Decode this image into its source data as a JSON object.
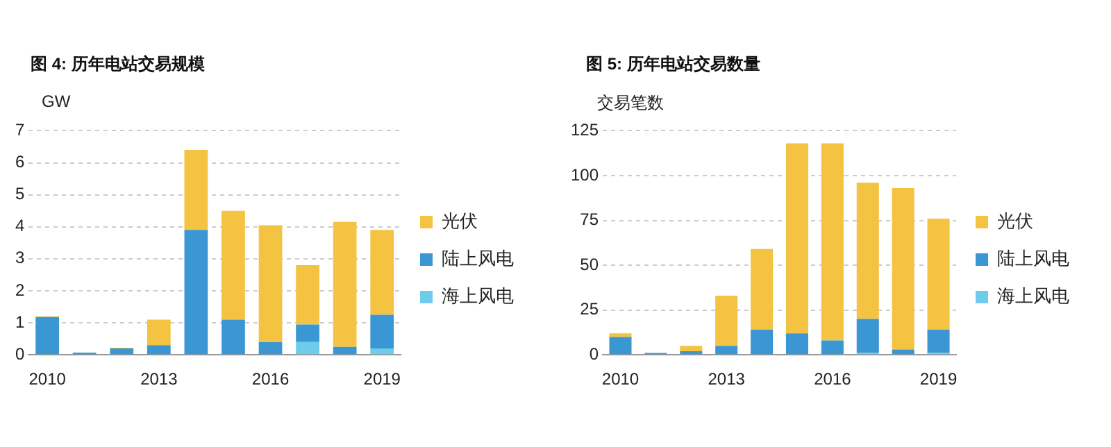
{
  "chart_data": [
    {
      "type": "bar",
      "title": "图 4: 历年电站交易规模",
      "ylabel": "GW",
      "stacked": true,
      "categories": [
        "2010",
        null,
        null,
        "2013",
        null,
        null,
        "2016",
        null,
        null,
        "2019"
      ],
      "ylim": [
        0,
        7
      ],
      "yticks": [
        0,
        1,
        2,
        3,
        4,
        5,
        6,
        7
      ],
      "grid": "y",
      "legend": "right",
      "series": [
        {
          "name": "海上风电",
          "color": "#6fcbea",
          "values": [
            0,
            0,
            0,
            0,
            0,
            0,
            0,
            0.4,
            0,
            0.2
          ]
        },
        {
          "name": "陆上风电",
          "color": "#3a97d4",
          "values": [
            1.18,
            0.07,
            0.2,
            0.3,
            3.9,
            1.1,
            0.4,
            0.55,
            0.25,
            1.05
          ]
        },
        {
          "name": "光伏",
          "color": "#f5c342",
          "values": [
            0.02,
            0,
            0.02,
            0.8,
            2.5,
            3.4,
            3.65,
            1.85,
            3.9,
            2.65
          ]
        }
      ]
    },
    {
      "type": "bar",
      "title": "图 5: 历年电站交易数量",
      "ylabel": "交易笔数",
      "stacked": true,
      "categories": [
        "2010",
        null,
        null,
        "2013",
        null,
        null,
        "2016",
        null,
        null,
        "2019"
      ],
      "ylim": [
        0,
        125
      ],
      "yticks": [
        0,
        25,
        50,
        75,
        100,
        125
      ],
      "grid": "y",
      "legend": "right",
      "series": [
        {
          "name": "海上风电",
          "color": "#6fcbea",
          "values": [
            0,
            0,
            0,
            0,
            0,
            0,
            0,
            1,
            0,
            1
          ]
        },
        {
          "name": "陆上风电",
          "color": "#3a97d4",
          "values": [
            10,
            1,
            2,
            5,
            14,
            12,
            8,
            19,
            3,
            13
          ]
        },
        {
          "name": "光伏",
          "color": "#f5c342",
          "values": [
            2,
            0,
            3,
            28,
            45,
            106,
            110,
            76,
            90,
            62
          ]
        }
      ]
    }
  ]
}
